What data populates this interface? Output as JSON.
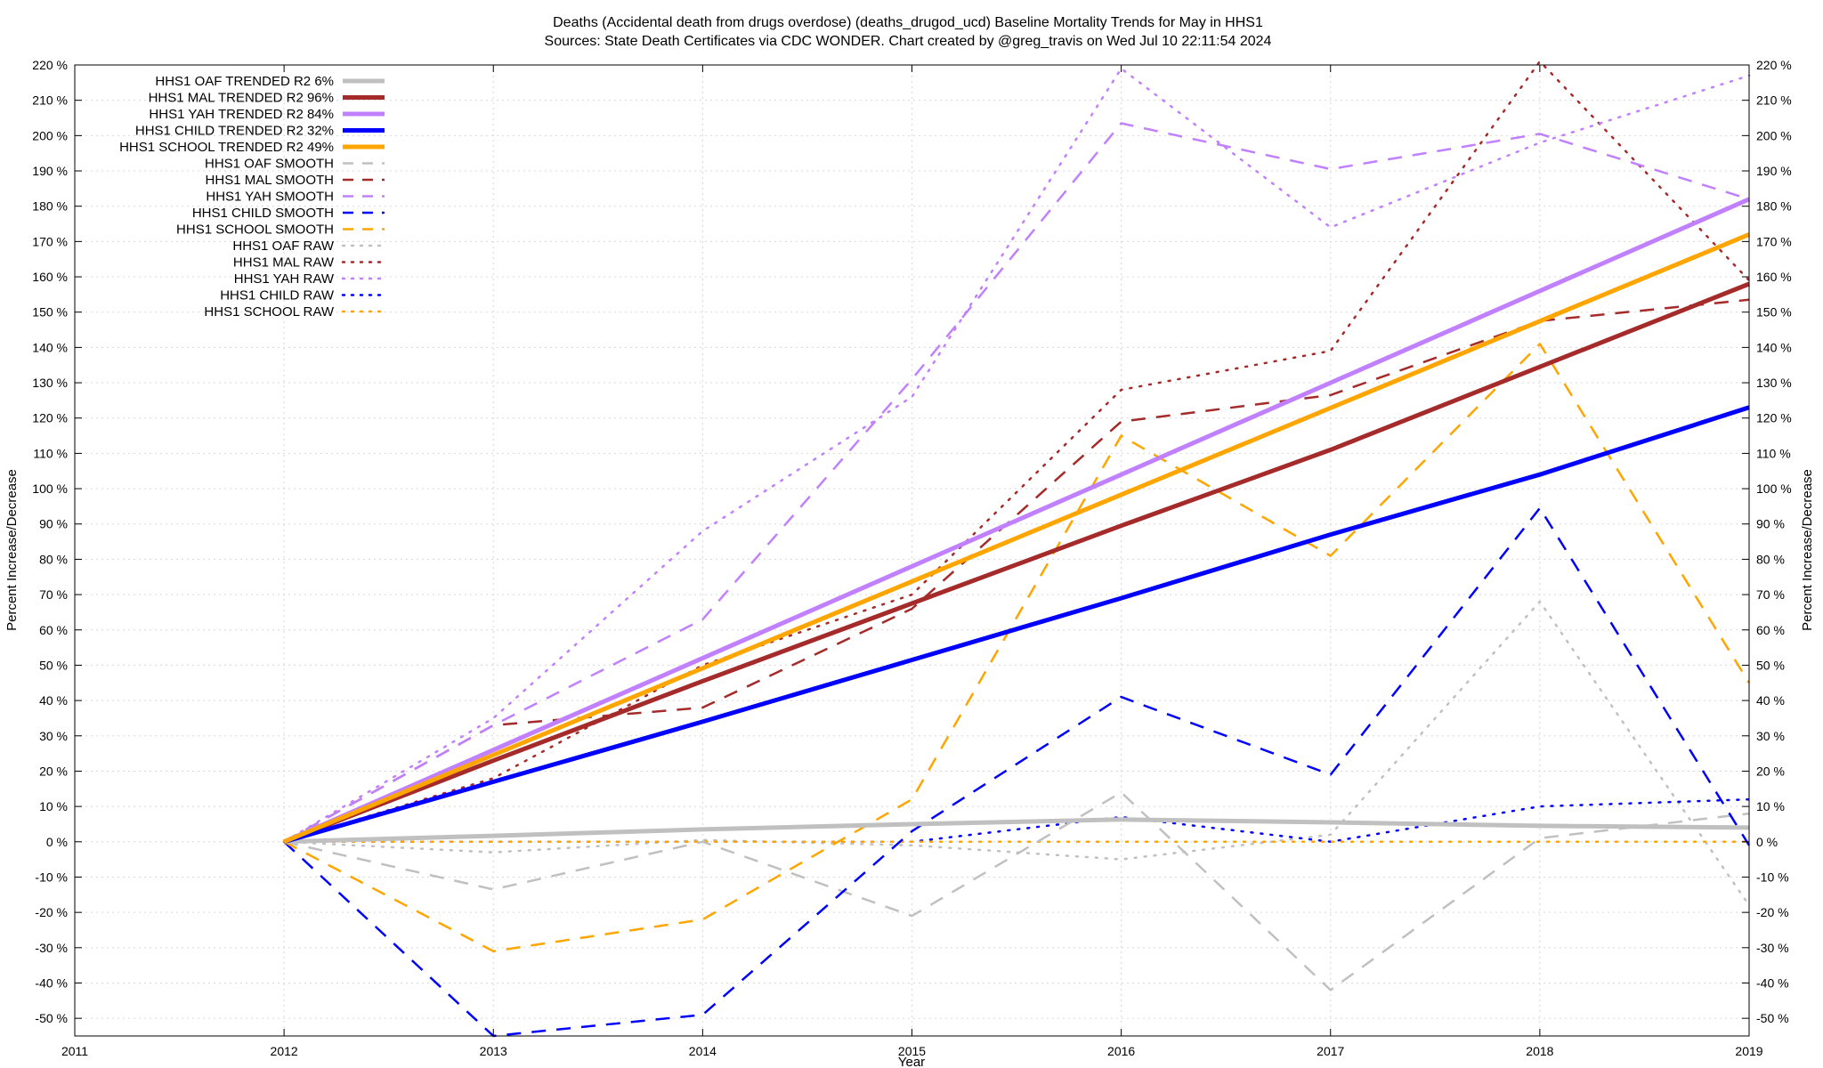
{
  "chart_data": {
    "type": "line",
    "title_line1": "Deaths (Accidental death from drugs overdose) (deaths_drugod_ucd)  Baseline Mortality Trends for May in HHS1",
    "title_line2": "Sources: State Death Certificates via CDC WONDER.                Chart created by @greg_travis on Wed Jul 10 22:11:54 2024",
    "xlabel": "Year",
    "ylabel": "Percent Increase/Decrease",
    "y2label": "Percent Increase/Decrease",
    "xlim": [
      2011,
      2019
    ],
    "ylim": [
      -55,
      220
    ],
    "xticks": [
      2011,
      2012,
      2013,
      2014,
      2015,
      2016,
      2017,
      2018,
      2019
    ],
    "xtick_labels": [
      "2011",
      "2012",
      "2013",
      "2014",
      "2015",
      "2016",
      "2017",
      "2018",
      "2019"
    ],
    "yticks": [
      -50,
      -40,
      -30,
      -20,
      -10,
      0,
      10,
      20,
      30,
      40,
      50,
      60,
      70,
      80,
      90,
      100,
      110,
      120,
      130,
      140,
      150,
      160,
      170,
      180,
      190,
      200,
      210,
      220
    ],
    "ytick_labels": [
      "-50 %",
      "-40 %",
      "-30 %",
      "-20 %",
      "-10 %",
      "0 %",
      "10 %",
      "20 %",
      "30 %",
      "40 %",
      "50 %",
      "60 %",
      "70 %",
      "80 %",
      "90 %",
      "100 %",
      "110 %",
      "120 %",
      "130 %",
      "140 %",
      "150 %",
      "160 %",
      "170 %",
      "180 %",
      "190 %",
      "200 %",
      "210 %",
      "220 %"
    ],
    "grid": true,
    "legend_position": "top-left",
    "series": [
      {
        "name": "HHS1 OAF TRENDED R2  6%",
        "style": "trend",
        "color": "#c0c0c0",
        "x": [
          2012,
          2013,
          2014,
          2015,
          2016,
          2017,
          2018,
          2019
        ],
        "y": [
          0,
          1.7,
          3.5,
          5,
          6.3,
          5.5,
          4.5,
          4
        ]
      },
      {
        "name": "HHS1 MAL TRENDED R2  96%",
        "style": "trend",
        "color": "#a52a2a",
        "x": [
          2012,
          2013,
          2014,
          2015,
          2016,
          2017,
          2018,
          2019
        ],
        "y": [
          0,
          23,
          45.5,
          67.5,
          89.5,
          111,
          134.5,
          158
        ]
      },
      {
        "name": "HHS1 YAH TRENDED R2  84%",
        "style": "trend",
        "color": "#c080ff",
        "x": [
          2012,
          2019
        ],
        "y": [
          0,
          182
        ]
      },
      {
        "name": "HHS1 CHILD TRENDED R2  32%",
        "style": "trend",
        "color": "#0000ff",
        "x": [
          2012,
          2013,
          2014,
          2015,
          2016,
          2017,
          2018,
          2019
        ],
        "y": [
          0,
          17,
          34,
          51.5,
          69,
          87,
          104,
          123
        ]
      },
      {
        "name": "HHS1 SCHOOL TRENDED R2  49%",
        "style": "trend",
        "color": "#ffa500",
        "x": [
          2012,
          2019
        ],
        "y": [
          0,
          172
        ]
      },
      {
        "name": "HHS1 OAF SMOOTH",
        "style": "smooth",
        "color": "#c0c0c0",
        "x": [
          2012,
          2013,
          2014,
          2015,
          2016,
          2017,
          2018,
          2019
        ],
        "y": [
          0,
          -13.5,
          0,
          -21,
          14,
          -42,
          1,
          8
        ]
      },
      {
        "name": "HHS1 MAL SMOOTH",
        "style": "smooth",
        "color": "#a52a2a",
        "x": [
          2012,
          2013,
          2014,
          2015,
          2016,
          2017,
          2018,
          2019
        ],
        "y": [
          0,
          33,
          38,
          66,
          119,
          126.5,
          147.5,
          153.5
        ]
      },
      {
        "name": "HHS1 YAH SMOOTH",
        "style": "smooth",
        "color": "#c080ff",
        "x": [
          2012,
          2013,
          2014,
          2015,
          2016,
          2017,
          2018,
          2019
        ],
        "y": [
          0,
          33,
          63,
          131,
          203.5,
          190.5,
          200.5,
          182
        ]
      },
      {
        "name": "HHS1 CHILD SMOOTH",
        "style": "smooth",
        "color": "#0000ff",
        "x": [
          2012,
          2013,
          2014,
          2015,
          2016,
          2017,
          2018,
          2019
        ],
        "y": [
          0,
          -55,
          -49,
          3,
          41,
          19,
          94.5,
          -1
        ]
      },
      {
        "name": "HHS1 SCHOOL SMOOTH",
        "style": "smooth",
        "color": "#ffa500",
        "x": [
          2012,
          2013,
          2014,
          2015,
          2016,
          2017,
          2018,
          2019
        ],
        "y": [
          0,
          -31,
          -22,
          12,
          115,
          81,
          141,
          45
        ]
      },
      {
        "name": "HHS1 OAF RAW",
        "style": "raw",
        "color": "#c0c0c0",
        "x": [
          2012,
          2013,
          2014,
          2015,
          2016,
          2017,
          2018,
          2019
        ],
        "y": [
          0,
          -3,
          0.5,
          -1,
          -5,
          2,
          68,
          -18
        ]
      },
      {
        "name": "HHS1 MAL RAW",
        "style": "raw",
        "color": "#a52a2a",
        "x": [
          2012,
          2013,
          2014,
          2015,
          2016,
          2017,
          2018,
          2019
        ],
        "y": [
          0,
          18,
          50,
          70,
          128,
          139,
          221,
          159
        ]
      },
      {
        "name": "HHS1 YAH RAW",
        "style": "raw",
        "color": "#c080ff",
        "x": [
          2012,
          2013,
          2014,
          2015,
          2016,
          2017,
          2018,
          2019
        ],
        "y": [
          0,
          35,
          88,
          126,
          219,
          174,
          198,
          217
        ]
      },
      {
        "name": "HHS1 CHILD RAW",
        "style": "raw",
        "color": "#0000ff",
        "x": [
          2012,
          2013,
          2014,
          2015,
          2016,
          2017,
          2018,
          2019
        ],
        "y": [
          0,
          0,
          0,
          0,
          7,
          0,
          10,
          12
        ]
      },
      {
        "name": "HHS1 SCHOOL RAW",
        "style": "raw",
        "color": "#ffa500",
        "x": [
          2012,
          2013,
          2014,
          2015,
          2016,
          2017,
          2018,
          2019
        ],
        "y": [
          0,
          0,
          0,
          0,
          0,
          0,
          0,
          0
        ]
      }
    ]
  }
}
